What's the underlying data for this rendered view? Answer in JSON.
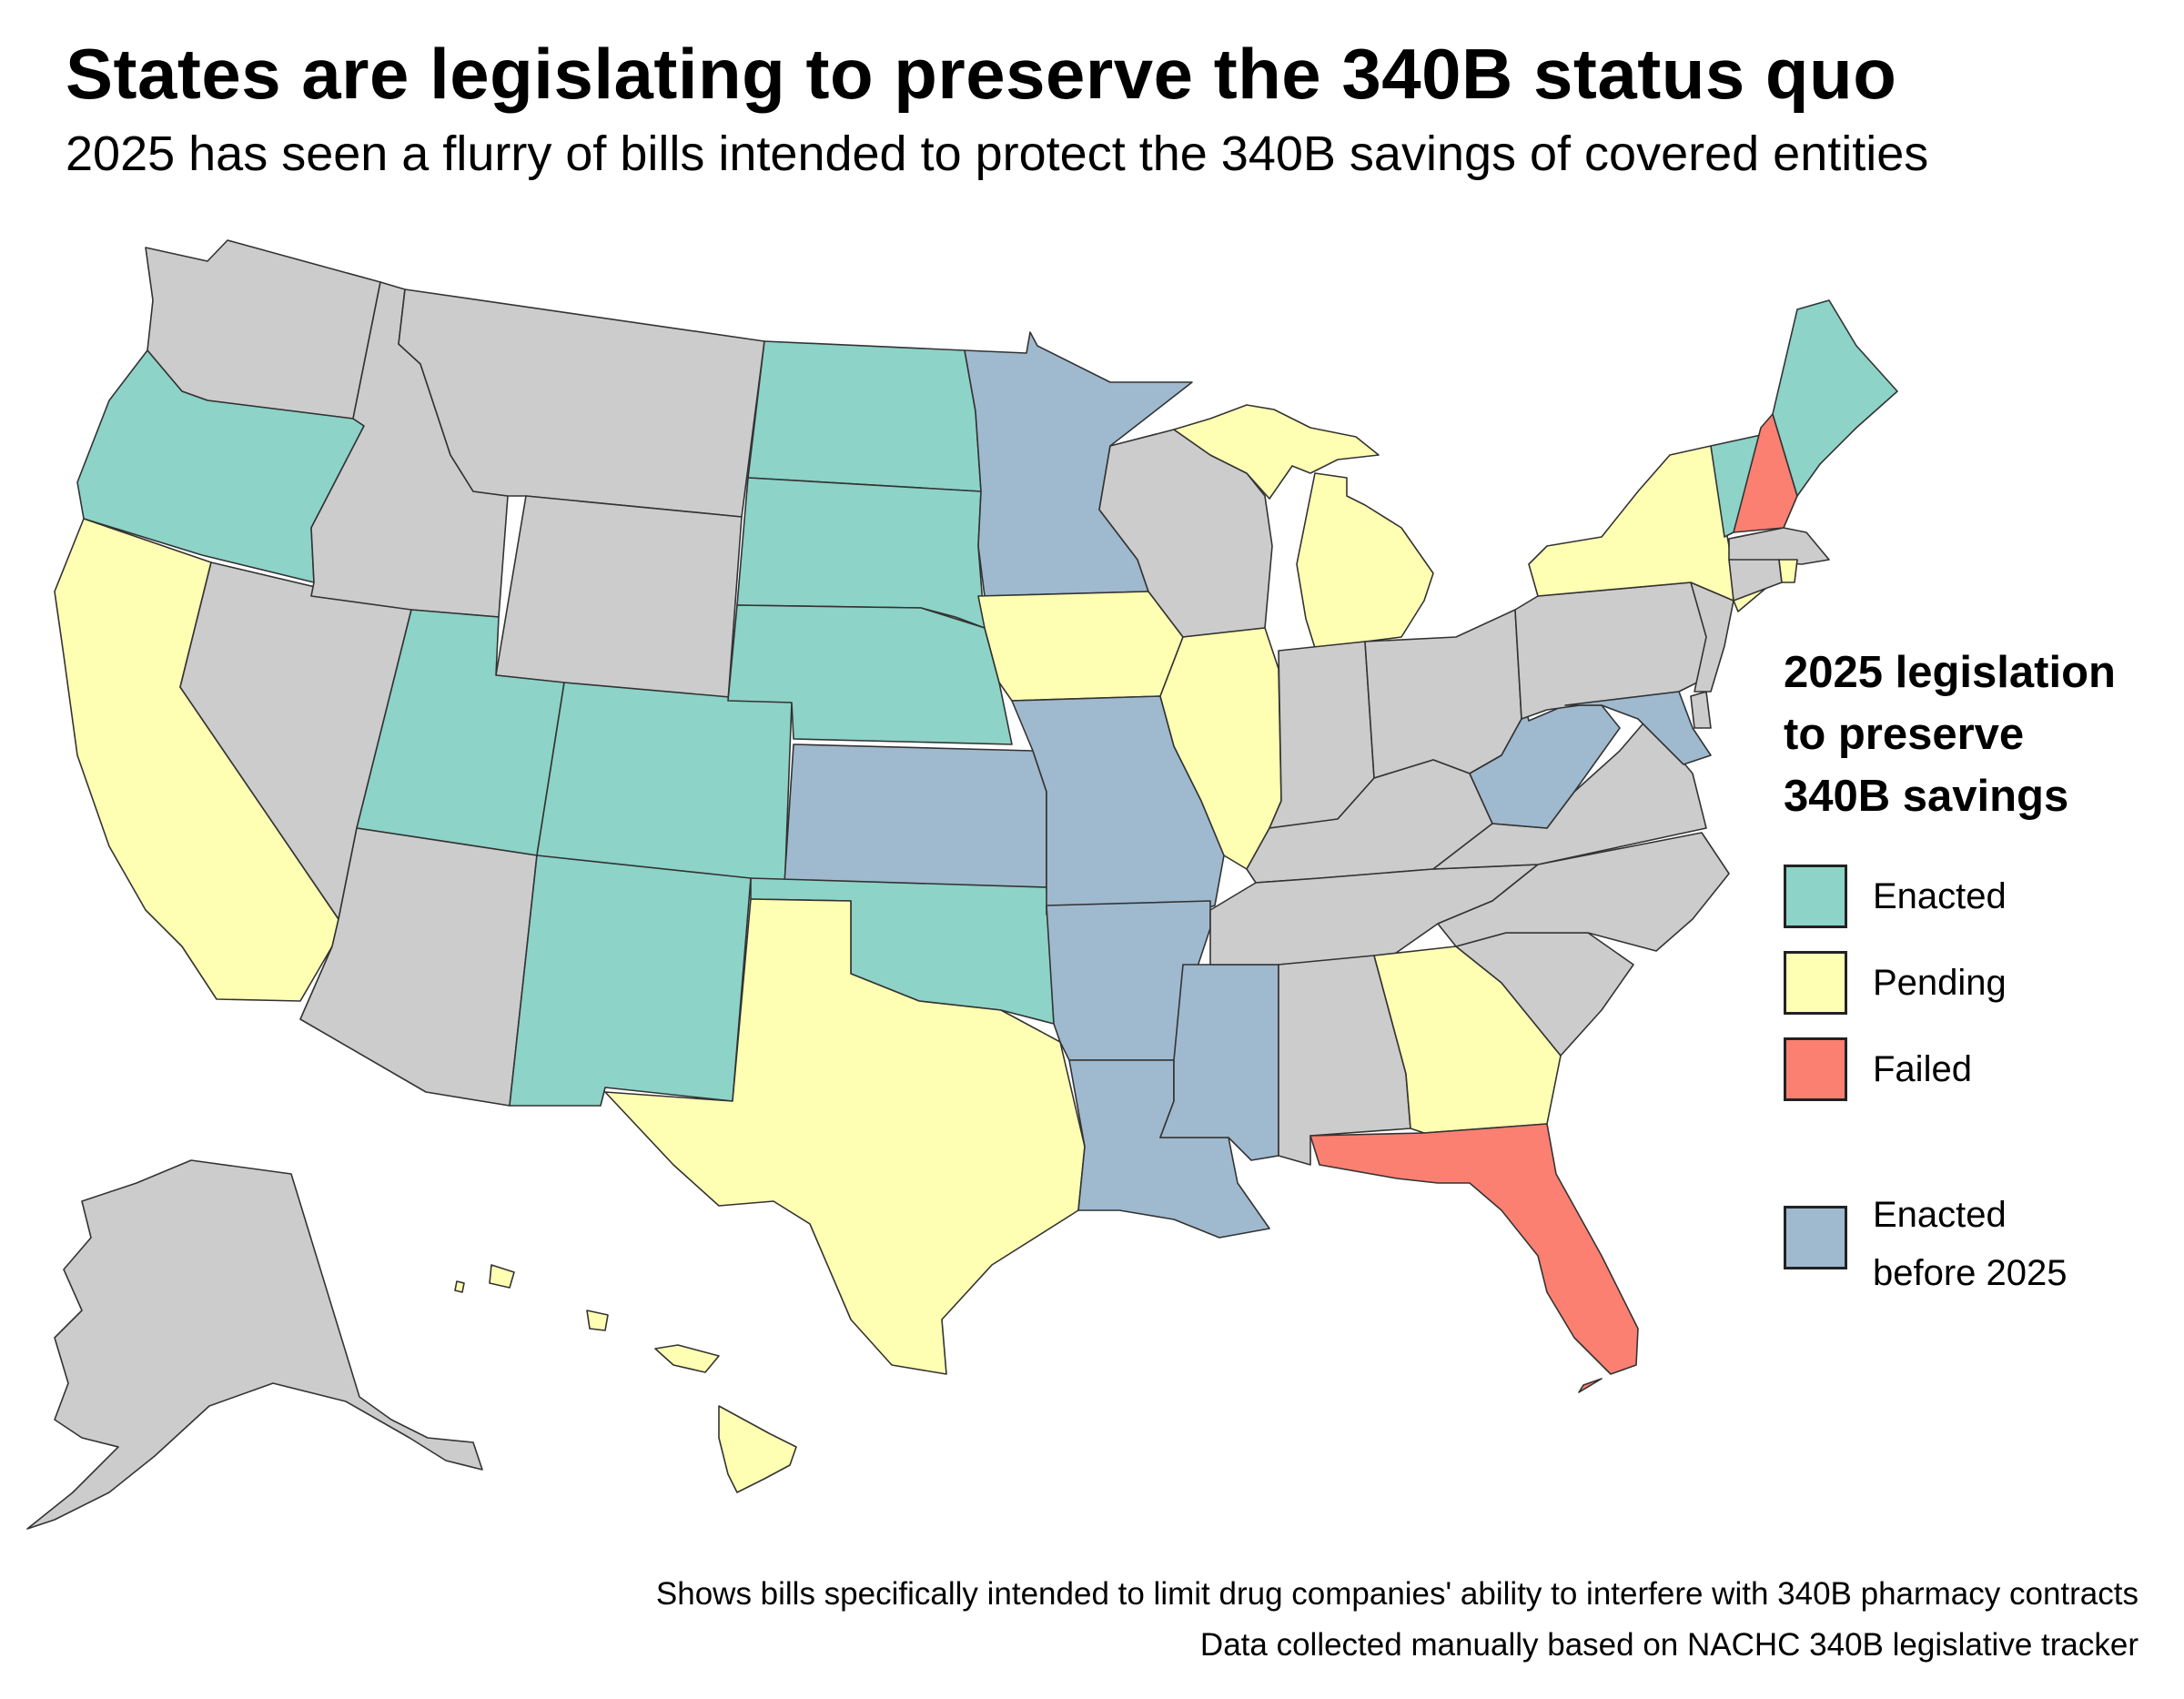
{
  "title": "States are legislating to preserve the 340B status quo",
  "subtitle": "2025 has seen a flurry of bills intended to protect the 340B savings of covered entities",
  "legend": {
    "title_lines": [
      "2025 legislation",
      "to preserve",
      "340B savings"
    ],
    "items": [
      {
        "key": "enacted",
        "label": "Enacted",
        "color": "#8dd3c7"
      },
      {
        "key": "pending",
        "label": "Pending",
        "color": "#ffffb3"
      },
      {
        "key": "failed",
        "label": "Failed",
        "color": "#fb8072"
      },
      {
        "key": "before",
        "label_lines": [
          "Enacted",
          "before 2025"
        ],
        "color": "#9fb9cf"
      }
    ],
    "none_color": "#cccccc"
  },
  "footer": {
    "line1": "Shows bills specifically intended to limit drug companies' ability to interfere with 340B pharmacy contracts",
    "line2": "Data collected manually based on NACHC 340B legislative tracker"
  },
  "state_status": {
    "WA": "none",
    "OR": "enacted",
    "CA": "pending",
    "NV": "none",
    "ID": "none",
    "MT": "none",
    "WY": "none",
    "UT": "enacted",
    "CO": "enacted",
    "AZ": "none",
    "NM": "enacted",
    "ND": "enacted",
    "SD": "enacted",
    "NE": "enacted",
    "KS": "before",
    "OK": "enacted",
    "TX": "pending",
    "MN": "before",
    "IA": "pending",
    "MO": "before",
    "AR": "before",
    "LA": "before",
    "WI": "none",
    "IL": "pending",
    "MS": "before",
    "MI": "pending",
    "IN": "none",
    "OH": "none",
    "KY": "none",
    "TN": "none",
    "AL": "none",
    "GA": "pending",
    "FL": "failed",
    "SC": "none",
    "NC": "none",
    "VA": "none",
    "WV": "before",
    "PA": "none",
    "NY": "pending",
    "VT": "enacted",
    "NH": "failed",
    "ME": "enacted",
    "MA": "none",
    "RI": "pending",
    "CT": "none",
    "NJ": "none",
    "DE": "none",
    "MD": "before",
    "AK": "none",
    "HI": "pending"
  }
}
